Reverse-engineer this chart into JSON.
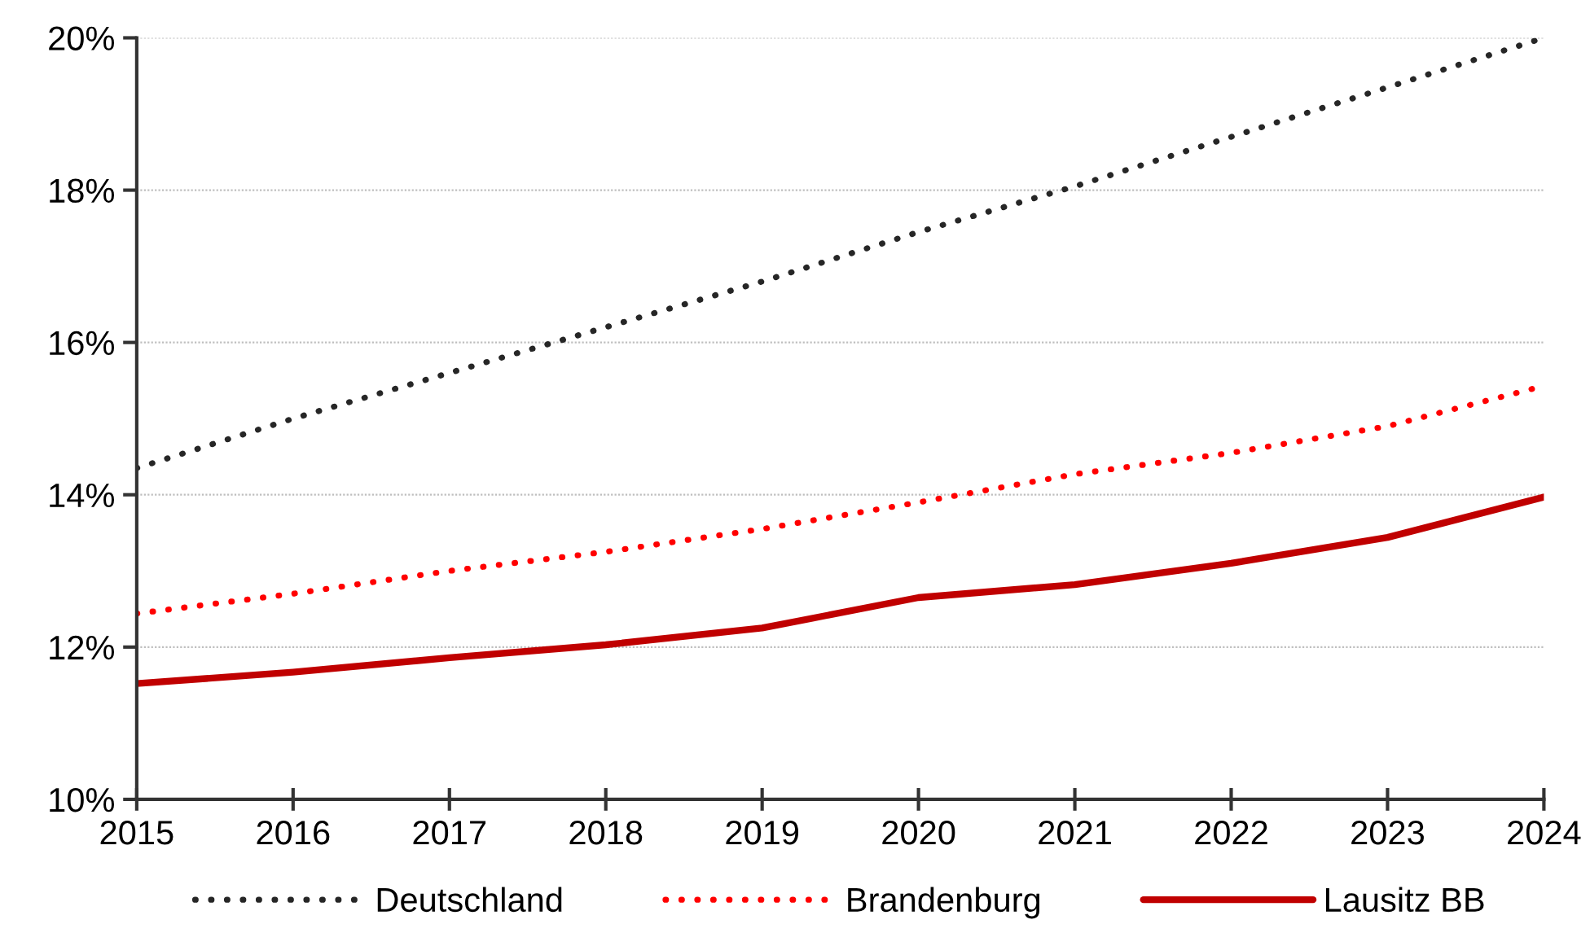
{
  "chart_data": {
    "type": "line",
    "x": [
      2015,
      2016,
      2017,
      2018,
      2019,
      2020,
      2021,
      2022,
      2023,
      2024
    ],
    "series": [
      {
        "name": "Deutschland",
        "color": "#262626",
        "line_style": "dotted",
        "values": [
          14.35,
          15.0,
          15.6,
          16.2,
          16.8,
          17.45,
          18.05,
          18.7,
          19.35,
          20.0
        ]
      },
      {
        "name": "Brandenburg",
        "color": "#ff0000",
        "line_style": "dotted",
        "values": [
          12.44,
          12.7,
          13.0,
          13.25,
          13.55,
          13.9,
          14.27,
          14.55,
          14.9,
          15.43
        ]
      },
      {
        "name": "Lausitz BB",
        "color": "#c00000",
        "line_style": "solid",
        "values": [
          11.52,
          11.67,
          11.86,
          12.03,
          12.25,
          12.65,
          12.82,
          13.1,
          13.44,
          13.97
        ]
      }
    ],
    "xlim": [
      2015,
      2024
    ],
    "xticks": [
      2015,
      2016,
      2017,
      2018,
      2019,
      2020,
      2021,
      2022,
      2023,
      2024
    ],
    "ylim": [
      10,
      20
    ],
    "yticks": [
      {
        "value": 10,
        "label": "10%"
      },
      {
        "value": 12,
        "label": "12%"
      },
      {
        "value": 14,
        "label": "14%"
      },
      {
        "value": 16,
        "label": "16%"
      },
      {
        "value": 18,
        "label": "18%"
      },
      {
        "value": 20,
        "label": "20%"
      }
    ],
    "grid": "y",
    "legend": "bottom",
    "marker": "none"
  }
}
